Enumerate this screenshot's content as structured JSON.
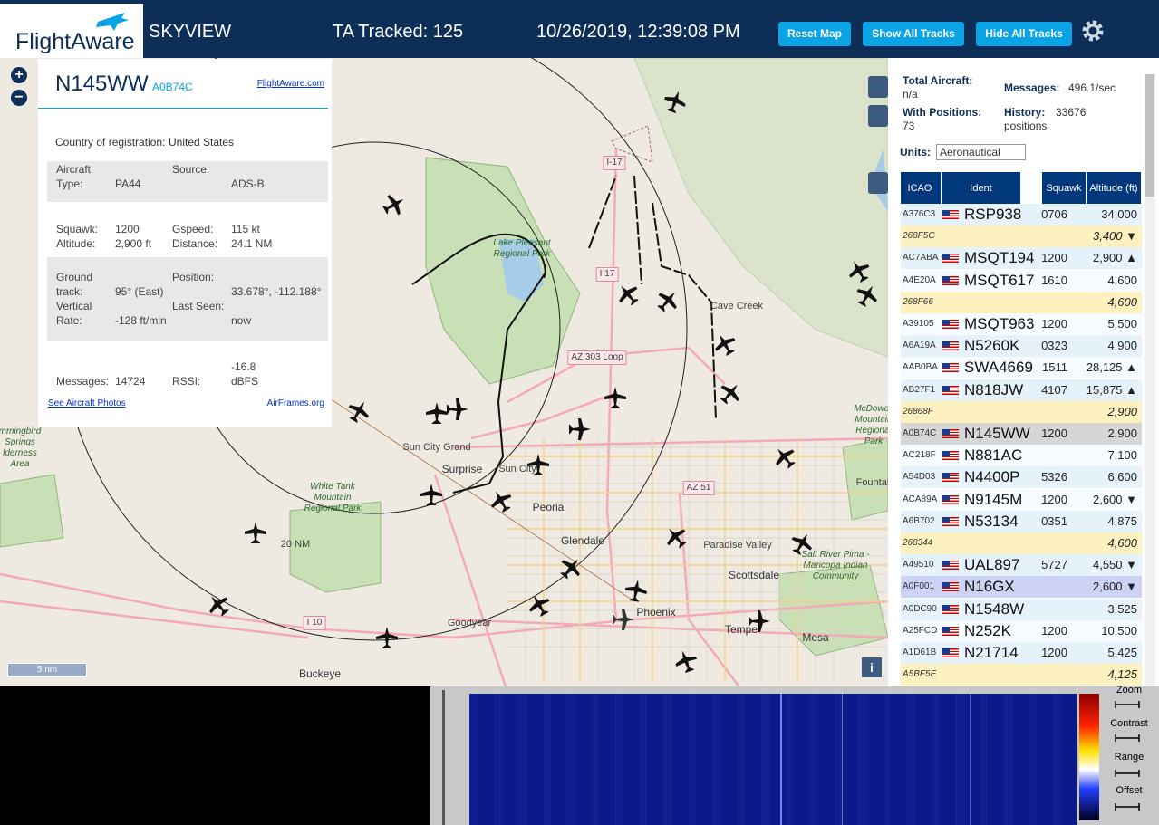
{
  "header": {
    "logo": "FlightAware",
    "title": "SKYVIEW",
    "tracked": "TA Tracked: 125",
    "datetime": "10/26/2019, 12:39:08 PM",
    "buttons": [
      "Reset Map",
      "Show All Tracks",
      "Hide All Tracks"
    ]
  },
  "selected": {
    "ident": "N145WW",
    "icao": "A0B74C",
    "link": "FlightAware.com",
    "country_label": "Country of registration:",
    "country": "United States",
    "details": [
      [
        [
          "Aircraft Type:",
          "PA44"
        ],
        [
          "Source:",
          "ADS-B"
        ]
      ],
      [
        [
          "Squawk:",
          "1200"
        ],
        [
          "Gspeed:",
          "115 kt"
        ]
      ],
      [
        [
          "Altitude:",
          "2,900 ft"
        ],
        [
          "Distance:",
          "24.1 NM"
        ]
      ],
      [
        [
          "Ground track:",
          "95° (East)"
        ],
        [
          "Position:",
          "33.678°, -112.188°"
        ]
      ],
      [
        [
          "Vertical Rate:",
          "-128 ft/min"
        ],
        [
          "Last Seen:",
          "now"
        ]
      ],
      [
        [
          "Messages:",
          "14724"
        ],
        [
          "RSSI:",
          "-16.8 dBFS"
        ]
      ]
    ],
    "photos_link": "See Aircraft Photos",
    "airframes_link": "AirFrames.org"
  },
  "map": {
    "labels": [
      "I-17",
      "Lake Pleasant Regional Park",
      "I 17",
      "Cave Creek",
      "AZ 303 Loop",
      "Sun City Grand",
      "Surprise",
      "Sun City",
      "Peoria",
      "AZ 51",
      "White Tank Mountain Regional Park",
      "McDowell Mountain Regional Park",
      "Glendale",
      "Paradise Valley",
      "Scottsdale",
      "Salt River Pima - Maricopa Indian Community",
      "Phoenix",
      "Goodyear",
      "I 10",
      "Tempe",
      "Mesa",
      "Buckeye",
      "Fountain",
      "mmingbird Springs lderness Area",
      "20 NM"
    ],
    "scale": "5 nm",
    "info_button": "i"
  },
  "stats": {
    "total_label": "Total Aircraft:",
    "total": "n/a",
    "messages_label": "Messages:",
    "messages": "496.1/sec",
    "positions_label": "With Positions:",
    "positions": "73",
    "history_label": "History:",
    "history": "33676 positions",
    "units_label": "Units:",
    "units": "Aeronautical"
  },
  "table": {
    "columns": [
      "ICAO",
      "Ident",
      "Squawk",
      "Altitude (ft)"
    ],
    "rows": [
      [
        "A376C3",
        "RSP938",
        "0706",
        "34,000"
      ],
      [
        "268F5C",
        null,
        null,
        "3,400 ▼"
      ],
      [
        "AC7ABA",
        "MSQT194",
        "1200",
        "2,900 ▲"
      ],
      [
        "A4E20A",
        "MSQT617",
        "1610",
        "4,600"
      ],
      [
        "268F66",
        null,
        null,
        "4,600"
      ],
      [
        "A39105",
        "MSQT963",
        "1200",
        "5,500"
      ],
      [
        "A6A19A",
        "N5260K",
        "0323",
        "4,900"
      ],
      [
        "AAB0BA",
        "SWA4669",
        "1511",
        "28,125 ▲"
      ],
      [
        "AB27F1",
        "N818JW",
        "4107",
        "15,875 ▲"
      ],
      [
        "26868F",
        null,
        null,
        "2,900"
      ],
      [
        "A0B74C",
        "N145WW",
        "1200",
        "2,900"
      ],
      [
        "AC218F",
        "N881AC",
        null,
        "7,100"
      ],
      [
        "A54D03",
        "N4400P",
        "5326",
        "6,600"
      ],
      [
        "ACA89A",
        "N9145M",
        "1200",
        "2,600 ▼"
      ],
      [
        "A6B702",
        "N53134",
        "0351",
        "4,875"
      ],
      [
        "268344",
        null,
        null,
        "4,600"
      ],
      [
        "A49510",
        "UAL897",
        "5727",
        "4,550 ▼"
      ],
      [
        "A0F001",
        "N16GX",
        null,
        "2,600 ▼"
      ],
      [
        "A0DC90",
        "N1548W",
        null,
        "3,525"
      ],
      [
        "A25FCD",
        "N252K",
        "1200",
        "10,500"
      ],
      [
        "A1D61B",
        "N21714",
        "1200",
        "5,425"
      ],
      [
        "A5BF5E",
        null,
        null,
        "4,125"
      ]
    ]
  },
  "spectrum": {
    "controls": [
      "Zoom",
      "Contrast",
      "Range",
      "Offset"
    ]
  }
}
